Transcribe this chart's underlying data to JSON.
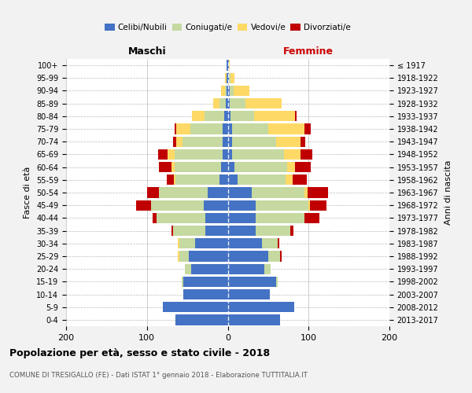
{
  "age_groups": [
    "0-4",
    "5-9",
    "10-14",
    "15-19",
    "20-24",
    "25-29",
    "30-34",
    "35-39",
    "40-44",
    "45-49",
    "50-54",
    "55-59",
    "60-64",
    "65-69",
    "70-74",
    "75-79",
    "80-84",
    "85-89",
    "90-94",
    "95-99",
    "100+"
  ],
  "birth_years": [
    "2013-2017",
    "2008-2012",
    "2003-2007",
    "1998-2002",
    "1993-1997",
    "1988-1992",
    "1983-1987",
    "1978-1982",
    "1973-1977",
    "1968-1972",
    "1963-1967",
    "1958-1962",
    "1953-1957",
    "1948-1952",
    "1943-1947",
    "1938-1942",
    "1933-1937",
    "1928-1932",
    "1923-1927",
    "1918-1922",
    "≤ 1917"
  ],
  "colors": {
    "celibi": "#4472C4",
    "coniugati": "#C5D9A0",
    "vedovi": "#FFD966",
    "divorziati": "#C00000",
    "bg": "#F2F2F2",
    "plot_bg": "#FFFFFF",
    "grid": "#CCCCCC"
  },
  "maschi": {
    "celibi": [
      65,
      80,
      55,
      55,
      45,
      48,
      40,
      28,
      28,
      30,
      25,
      10,
      8,
      6,
      6,
      6,
      4,
      2,
      1,
      1,
      1
    ],
    "coniugati": [
      0,
      0,
      0,
      2,
      8,
      12,
      20,
      40,
      60,
      65,
      60,
      55,
      58,
      60,
      50,
      40,
      25,
      8,
      2,
      0,
      0
    ],
    "vedovi": [
      0,
      0,
      0,
      0,
      0,
      2,
      2,
      0,
      0,
      0,
      0,
      2,
      4,
      8,
      8,
      18,
      15,
      8,
      5,
      2,
      0
    ],
    "divorziati": [
      0,
      0,
      0,
      0,
      0,
      0,
      0,
      2,
      5,
      18,
      15,
      8,
      15,
      12,
      4,
      2,
      0,
      0,
      0,
      0,
      0
    ]
  },
  "femmine": {
    "celibi": [
      65,
      82,
      52,
      60,
      45,
      50,
      42,
      35,
      35,
      35,
      30,
      12,
      8,
      5,
      5,
      5,
      3,
      2,
      2,
      1,
      1
    ],
    "coniugati": [
      0,
      0,
      0,
      2,
      8,
      15,
      20,
      42,
      60,
      65,
      65,
      60,
      65,
      65,
      55,
      45,
      30,
      20,
      5,
      2,
      0
    ],
    "vedovi": [
      0,
      0,
      0,
      0,
      0,
      0,
      0,
      0,
      0,
      2,
      4,
      8,
      10,
      20,
      30,
      45,
      50,
      45,
      20,
      5,
      1
    ],
    "divorziati": [
      0,
      0,
      0,
      0,
      0,
      2,
      2,
      4,
      18,
      20,
      25,
      18,
      20,
      15,
      6,
      8,
      2,
      0,
      0,
      0,
      0
    ]
  },
  "xlim": 200,
  "title": "Popolazione per età, sesso e stato civile - 2018",
  "subtitle": "COMUNE DI TRESIGALLO (FE) - Dati ISTAT 1° gennaio 2018 - Elaborazione TUTTITALIA.IT",
  "ylabel_left": "Fasce di età",
  "ylabel_right": "Anni di nascita",
  "xlabel_left": "Maschi",
  "xlabel_right": "Femmine",
  "legend_labels": [
    "Celibi/Nubili",
    "Coniugati/e",
    "Vedovi/e",
    "Divorziati/e"
  ]
}
